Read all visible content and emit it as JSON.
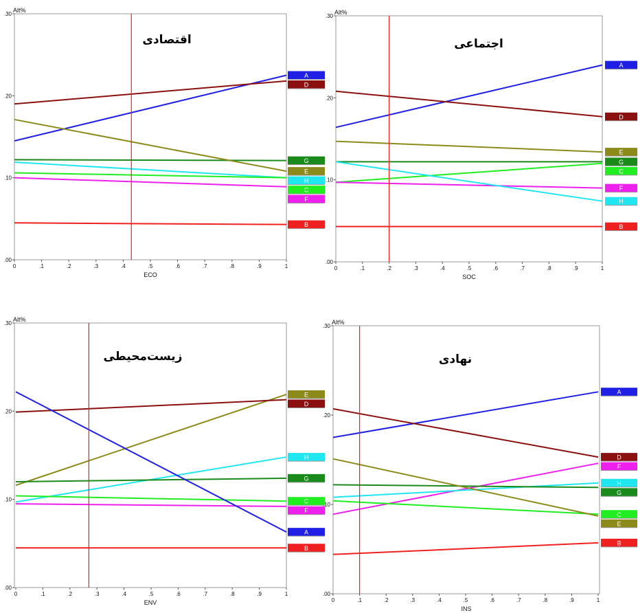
{
  "chart_data": [
    {
      "type": "line",
      "title": "اقتصادی",
      "xlabel": "ECO",
      "ylabel": "Alt%",
      "xlim": [
        0,
        1
      ],
      "ylim": [
        0,
        0.3
      ],
      "x_ticks": [
        "0",
        ".1",
        ".2",
        ".3",
        ".4",
        ".5",
        ".6",
        ".7",
        ".8",
        ".9",
        "1"
      ],
      "y_ticks": [
        ".00",
        ".10",
        ".20",
        ".30"
      ],
      "current_weight": 0.43,
      "legend_placement": "right",
      "series": [
        {
          "name": "A",
          "color": "#1f1fe6",
          "values": [
            0.145,
            0.225
          ]
        },
        {
          "name": "D",
          "color": "#8b1010",
          "values": [
            0.19,
            0.218
          ]
        },
        {
          "name": "G",
          "color": "#1a8a1a",
          "values": [
            0.122,
            0.121
          ]
        },
        {
          "name": "E",
          "color": "#8c8a1a",
          "values": [
            0.171,
            0.108
          ]
        },
        {
          "name": "H",
          "color": "#20e6f0",
          "values": [
            0.119,
            0.1
          ]
        },
        {
          "name": "C",
          "color": "#20ee20",
          "values": [
            0.106,
            0.1
          ]
        },
        {
          "name": "F",
          "color": "#ee20ee",
          "values": [
            0.1,
            0.089
          ]
        },
        {
          "name": "B",
          "color": "#ee2020",
          "values": [
            0.045,
            0.043
          ]
        }
      ]
    },
    {
      "type": "line",
      "title": "اجتماعی",
      "xlabel": "SOC",
      "ylabel": "Alt%",
      "xlim": [
        0,
        1
      ],
      "ylim": [
        0,
        0.3
      ],
      "x_ticks": [
        "0",
        ".1",
        ".2",
        ".3",
        ".4",
        ".5",
        ".6",
        ".7",
        ".8",
        ".9",
        "1"
      ],
      "y_ticks": [
        ".00",
        ".10",
        ".20",
        ".30"
      ],
      "current_weight": 0.2,
      "legend_placement": "right",
      "series": [
        {
          "name": "A",
          "color": "#1f1fe6",
          "values": [
            0.164,
            0.24
          ]
        },
        {
          "name": "D",
          "color": "#8b1010",
          "values": [
            0.208,
            0.177
          ]
        },
        {
          "name": "E",
          "color": "#8c8a1a",
          "values": [
            0.147,
            0.134
          ]
        },
        {
          "name": "G",
          "color": "#1a8a1a",
          "values": [
            0.122,
            0.122
          ]
        },
        {
          "name": "C",
          "color": "#20ee20",
          "values": [
            0.097,
            0.12
          ]
        },
        {
          "name": "F",
          "color": "#ee20ee",
          "values": [
            0.097,
            0.09
          ]
        },
        {
          "name": "H",
          "color": "#20e6f0",
          "values": [
            0.122,
            0.074
          ]
        },
        {
          "name": "B",
          "color": "#ee2020",
          "values": [
            0.043,
            0.043
          ]
        }
      ]
    },
    {
      "type": "line",
      "title": "زیست‌محیطی",
      "xlabel": "ENV",
      "ylabel": "Alt%",
      "xlim": [
        0,
        1
      ],
      "ylim": [
        0,
        0.3
      ],
      "x_ticks": [
        "0",
        ".1",
        ".2",
        ".3",
        ".4",
        ".5",
        ".6",
        ".7",
        ".8",
        ".9",
        "1"
      ],
      "y_ticks": [
        ".00",
        ".10",
        ".20",
        ".30"
      ],
      "current_weight": 0.27,
      "legend_placement": "right",
      "series": [
        {
          "name": "E",
          "color": "#8c8a1a",
          "values": [
            0.116,
            0.219
          ]
        },
        {
          "name": "D",
          "color": "#8b1010",
          "values": [
            0.199,
            0.213
          ]
        },
        {
          "name": "H",
          "color": "#20e6f0",
          "values": [
            0.097,
            0.148
          ]
        },
        {
          "name": "G",
          "color": "#1a8a1a",
          "values": [
            0.12,
            0.124
          ]
        },
        {
          "name": "C",
          "color": "#20ee20",
          "values": [
            0.104,
            0.098
          ]
        },
        {
          "name": "F",
          "color": "#ee20ee",
          "values": [
            0.095,
            0.092
          ]
        },
        {
          "name": "A",
          "color": "#1f1fe6",
          "values": [
            0.222,
            0.063
          ]
        },
        {
          "name": "B",
          "color": "#ee2020",
          "values": [
            0.045,
            0.045
          ]
        }
      ]
    },
    {
      "type": "line",
      "title": "نهادی",
      "xlabel": "INS",
      "ylabel": "Alt%",
      "xlim": [
        0,
        1
      ],
      "ylim": [
        0,
        0.3
      ],
      "x_ticks": [
        "0",
        ".1",
        ".2",
        ".3",
        ".4",
        ".5",
        ".6",
        ".7",
        ".8",
        ".9",
        "1"
      ],
      "y_ticks": [
        ".00",
        ".10",
        ".20",
        ".30"
      ],
      "current_weight": 0.1,
      "legend_placement": "right",
      "series": [
        {
          "name": "A",
          "color": "#1f1fe6",
          "values": [
            0.175,
            0.226
          ]
        },
        {
          "name": "D",
          "color": "#8b1010",
          "values": [
            0.207,
            0.153
          ]
        },
        {
          "name": "F",
          "color": "#ee20ee",
          "values": [
            0.089,
            0.146
          ]
        },
        {
          "name": "H",
          "color": "#20e6f0",
          "values": [
            0.108,
            0.124
          ]
        },
        {
          "name": "G",
          "color": "#1a8a1a",
          "values": [
            0.122,
            0.119
          ]
        },
        {
          "name": "C",
          "color": "#20ee20",
          "values": [
            0.104,
            0.089
          ]
        },
        {
          "name": "E",
          "color": "#8c8a1a",
          "values": [
            0.151,
            0.087
          ]
        },
        {
          "name": "B",
          "color": "#ee2020",
          "values": [
            0.044,
            0.057
          ]
        }
      ]
    }
  ]
}
